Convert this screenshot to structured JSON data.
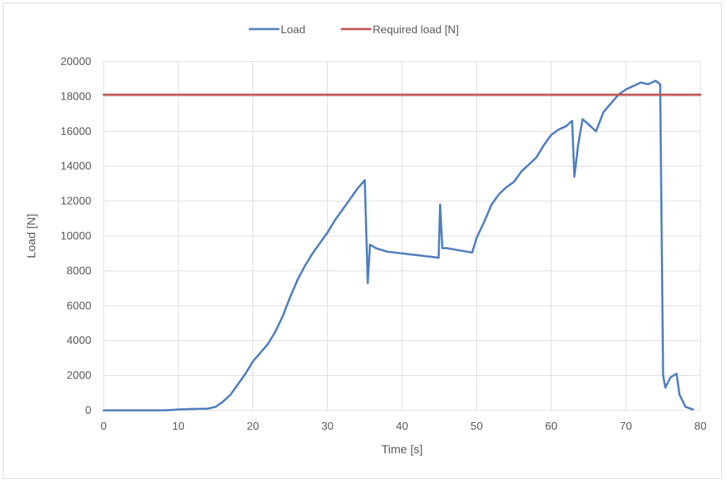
{
  "chart_data": {
    "type": "line",
    "xlabel": "Time [s]",
    "ylabel": "Load [N]",
    "xlim": [
      0,
      80
    ],
    "ylim": [
      0,
      20000
    ],
    "x_ticks": [
      0,
      10,
      20,
      30,
      40,
      50,
      60,
      70,
      80
    ],
    "y_ticks": [
      0,
      2000,
      4000,
      6000,
      8000,
      10000,
      12000,
      14000,
      16000,
      18000,
      20000
    ],
    "grid": true,
    "legend_position": "top-center",
    "series": [
      {
        "name": "Load",
        "color": "#4f7fbf",
        "points": [
          [
            0,
            0
          ],
          [
            8,
            0
          ],
          [
            9,
            20
          ],
          [
            10,
            50
          ],
          [
            12,
            80
          ],
          [
            14,
            100
          ],
          [
            15,
            200
          ],
          [
            16,
            500
          ],
          [
            17,
            900
          ],
          [
            18,
            1500
          ],
          [
            19,
            2100
          ],
          [
            20,
            2800
          ],
          [
            21,
            3300
          ],
          [
            22,
            3800
          ],
          [
            23,
            4500
          ],
          [
            24,
            5400
          ],
          [
            25,
            6500
          ],
          [
            26,
            7500
          ],
          [
            27,
            8300
          ],
          [
            28,
            9000
          ],
          [
            29,
            9600
          ],
          [
            30,
            10200
          ],
          [
            31,
            10900
          ],
          [
            32,
            11500
          ],
          [
            33,
            12100
          ],
          [
            34,
            12700
          ],
          [
            35,
            13200
          ],
          [
            35.4,
            7300
          ],
          [
            35.7,
            9500
          ],
          [
            36.5,
            9300
          ],
          [
            38,
            9100
          ],
          [
            40,
            9000
          ],
          [
            42,
            8900
          ],
          [
            44,
            8800
          ],
          [
            44.9,
            8750
          ],
          [
            45.1,
            11800
          ],
          [
            45.4,
            9300
          ],
          [
            46,
            9300
          ],
          [
            48,
            9150
          ],
          [
            49.4,
            9050
          ],
          [
            50,
            9900
          ],
          [
            51,
            10800
          ],
          [
            52,
            11800
          ],
          [
            53,
            12400
          ],
          [
            54,
            12800
          ],
          [
            55,
            13100
          ],
          [
            56,
            13700
          ],
          [
            57,
            14100
          ],
          [
            58,
            14500
          ],
          [
            59,
            15200
          ],
          [
            60,
            15800
          ],
          [
            61,
            16100
          ],
          [
            62,
            16300
          ],
          [
            62.8,
            16600
          ],
          [
            63.1,
            13400
          ],
          [
            63.6,
            15200
          ],
          [
            64.2,
            16700
          ],
          [
            65,
            16400
          ],
          [
            66,
            16000
          ],
          [
            67,
            17100
          ],
          [
            68,
            17600
          ],
          [
            69,
            18100
          ],
          [
            70,
            18400
          ],
          [
            71,
            18600
          ],
          [
            72,
            18800
          ],
          [
            73,
            18700
          ],
          [
            74,
            18900
          ],
          [
            74.6,
            18700
          ],
          [
            75,
            2000
          ],
          [
            75.3,
            1300
          ],
          [
            76,
            1900
          ],
          [
            76.8,
            2100
          ],
          [
            77.2,
            900
          ],
          [
            78,
            200
          ],
          [
            79,
            50
          ]
        ]
      },
      {
        "name": "Required load [N]",
        "color": "#c0504d",
        "points": [
          [
            0,
            18100
          ],
          [
            80,
            18100
          ]
        ]
      }
    ]
  }
}
